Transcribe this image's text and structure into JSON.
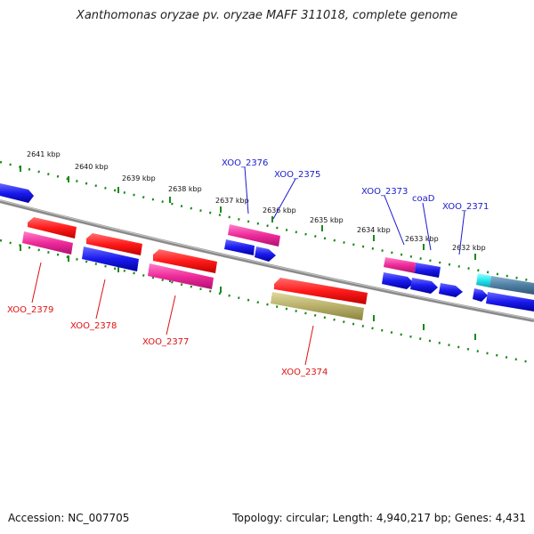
{
  "title": "Xanthomonas oryzae pv. oryzae MAFF 311018, complete genome",
  "footer": {
    "accession": "Accession: NC_007705",
    "topology": "Topology: circular; Length: 4,940,217 bp; Genes: 4,431"
  },
  "colors": {
    "red": "#ff1a1a",
    "blue": "#1a1aee",
    "pink": "#ee2a9a",
    "olive": "#b8b06a",
    "cyan": "#22e6ee",
    "steel": "#4f7fa3",
    "ticks": "#1a8a1a",
    "backbone": "#8a8a8a",
    "label_forward": "#1a1acc",
    "label_reverse": "#dd1111"
  },
  "kbp_labels": [
    "2641 kbp",
    "2640 kbp",
    "2639 kbp",
    "2638 kbp",
    "2637 kbp",
    "2636 kbp",
    "2635 kbp",
    "2634 kbp",
    "2633 kbp",
    "2632 kbp"
  ],
  "gene_labels_forward": [
    "XOO_2376",
    "XOO_2375",
    "XOO_2373",
    "coaD",
    "XOO_2371"
  ],
  "gene_labels_reverse": [
    "XOO_2379",
    "XOO_2378",
    "XOO_2377",
    "XOO_2374"
  ]
}
